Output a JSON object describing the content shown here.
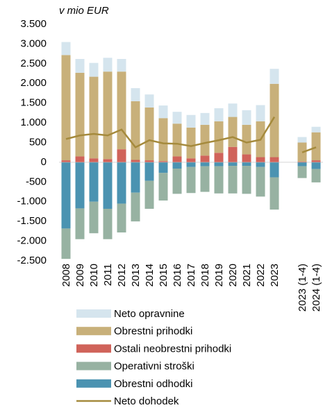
{
  "chart_data": {
    "type": "bar",
    "subtitle": "v mio EUR",
    "categories": [
      "2008",
      "2009",
      "2010",
      "2011",
      "2012",
      "2013",
      "2014",
      "2015",
      "2016",
      "2017",
      "2018",
      "2019",
      "2020",
      "2021",
      "2022",
      "2023",
      null,
      "2023 (1-4)",
      "2024 (1-4)"
    ],
    "series": [
      {
        "name": "Neto opravnine",
        "color": "#d5e5ee",
        "values": [
          330,
          350,
          350,
          350,
          320,
          330,
          330,
          320,
          300,
          320,
          300,
          330,
          340,
          370,
          410,
          380,
          null,
          140,
          140
        ]
      },
      {
        "name": "Obrestni prihodki",
        "color": "#c8b07a",
        "values": [
          2670,
          2120,
          2070,
          2220,
          1970,
          1490,
          1340,
          1090,
          830,
          780,
          780,
          800,
          760,
          750,
          910,
          1860,
          null,
          480,
          710
        ]
      },
      {
        "name": "Ostali neobrestni prihodki",
        "color": "#d0635a",
        "values": [
          50,
          150,
          100,
          80,
          330,
          60,
          50,
          30,
          150,
          100,
          170,
          240,
          390,
          200,
          130,
          130,
          null,
          20,
          50
        ]
      },
      {
        "name": "Operativni stroški",
        "color": "#97b2a2",
        "values": [
          -770,
          -780,
          -800,
          -770,
          -730,
          -730,
          -710,
          -700,
          -640,
          -660,
          -650,
          -690,
          -700,
          -710,
          -750,
          -820,
          null,
          -300,
          -340
        ]
      },
      {
        "name": "Obrestni odhodki",
        "color": "#4b93b1",
        "values": [
          -1680,
          -1170,
          -1000,
          -1180,
          -1050,
          -770,
          -470,
          -270,
          -160,
          -120,
          -100,
          -100,
          -90,
          -90,
          -120,
          -380,
          null,
          -100,
          -170
        ]
      },
      {
        "name": "Neto dohodek",
        "type": "line",
        "color": "#a58a3c",
        "values": [
          590,
          680,
          720,
          680,
          830,
          380,
          560,
          480,
          470,
          410,
          490,
          560,
          640,
          500,
          570,
          1150,
          null,
          250,
          380
        ]
      }
    ],
    "ylim": [
      -2500,
      3500
    ],
    "yticks": [
      {
        "value": 3500,
        "label": "3.500"
      },
      {
        "value": 3000,
        "label": "3.000"
      },
      {
        "value": 2500,
        "label": "2.500"
      },
      {
        "value": 2000,
        "label": "2.000"
      },
      {
        "value": 1500,
        "label": "1.500"
      },
      {
        "value": 1000,
        "label": "1.000"
      },
      500,
      0,
      -500,
      {
        "value": -1000,
        "label": "-1.000"
      },
      {
        "value": -1500,
        "label": "-1.500"
      },
      {
        "value": -2000,
        "label": "-2.000"
      },
      {
        "value": -2500,
        "label": "-2.500"
      }
    ],
    "grid": false
  }
}
